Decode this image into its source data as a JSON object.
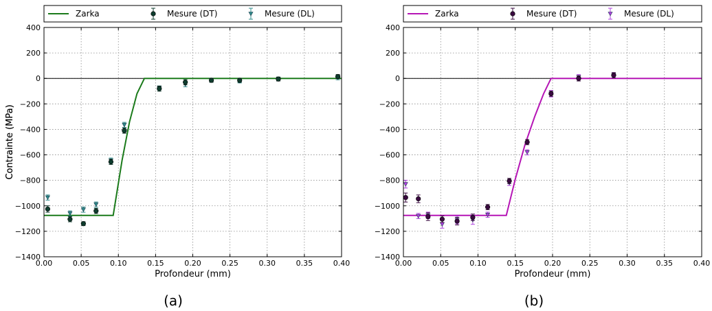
{
  "chart_data": [
    {
      "type": "scatter",
      "caption": "(a)",
      "xlabel": "Profondeur (mm)",
      "ylabel": "Contrainte (MPa)",
      "xlim": [
        0,
        0.4
      ],
      "ylim": [
        -1400,
        400
      ],
      "xticks": [
        "0.00",
        "0.05",
        "0.10",
        "0.15",
        "0.20",
        "0.25",
        "0.30",
        "0.35",
        "0.40"
      ],
      "yticks": [
        "400",
        "200",
        "0",
        "−200",
        "−400",
        "−600",
        "−800",
        "−1000",
        "−1200",
        "−1400"
      ],
      "grid": true,
      "legend": {
        "placement": "top",
        "entries": [
          "Zarka",
          "Mesure (DT)",
          "Mesure (DL)"
        ]
      },
      "colors": {
        "model": "#1a7a1a",
        "dt": "#0f3d2e",
        "dl": "#2e8b8b"
      },
      "series": [
        {
          "name": "Zarka",
          "kind": "line",
          "x": [
            0,
            0.093,
            0.105,
            0.115,
            0.125,
            0.135,
            0.4
          ],
          "y": [
            -1075,
            -1075,
            -640,
            -340,
            -120,
            0,
            0
          ]
        },
        {
          "name": "Mesure (DT)",
          "kind": "marker",
          "x": [
            0.005,
            0.035,
            0.053,
            0.07,
            0.09,
            0.108,
            0.155,
            0.19,
            0.225,
            0.263,
            0.315,
            0.395
          ],
          "y": [
            -1025,
            -1105,
            -1140,
            -1040,
            -655,
            -410,
            -80,
            -30,
            -15,
            -15,
            -5,
            15
          ],
          "err": [
            20,
            15,
            10,
            15,
            15,
            15,
            15,
            15,
            10,
            10,
            10,
            10
          ]
        },
        {
          "name": "Mesure (DL)",
          "kind": "marker",
          "x": [
            0.005,
            0.035,
            0.053,
            0.07,
            0.09,
            0.108,
            0.155,
            0.19,
            0.225,
            0.263,
            0.315,
            0.395
          ],
          "y": [
            -935,
            -1060,
            -1030,
            -990,
            -645,
            -365,
            -75,
            -45,
            -15,
            -20,
            -5,
            5
          ],
          "err": [
            15,
            15,
            15,
            15,
            15,
            15,
            10,
            15,
            10,
            10,
            10,
            10
          ]
        }
      ]
    },
    {
      "type": "scatter",
      "caption": "(b)",
      "xlabel": "Profondeur (mm)",
      "ylabel": "Contrainte (MPa)",
      "xlim": [
        0,
        0.4
      ],
      "ylim": [
        -1400,
        400
      ],
      "xticks": [
        "0.00",
        "0.05",
        "0.10",
        "0.15",
        "0.20",
        "0.25",
        "0.30",
        "0.35",
        "0.40"
      ],
      "yticks": [
        "400",
        "200",
        "0",
        "−200",
        "−400",
        "−600",
        "−800",
        "−1000",
        "−1200",
        "−1400"
      ],
      "grid": true,
      "legend": {
        "placement": "top",
        "entries": [
          "Zarka",
          "Mesure (DT)",
          "Mesure (DL)"
        ]
      },
      "colors": {
        "model": "#b515b5",
        "dt": "#3a0a40",
        "dl": "#b040e0"
      },
      "series": [
        {
          "name": "Zarka",
          "kind": "line",
          "x": [
            0,
            0.138,
            0.15,
            0.163,
            0.176,
            0.188,
            0.198,
            0.4
          ],
          "y": [
            -1075,
            -1075,
            -790,
            -520,
            -300,
            -120,
            0,
            0
          ]
        },
        {
          "name": "Mesure (DT)",
          "kind": "marker",
          "x": [
            0.003,
            0.02,
            0.033,
            0.052,
            0.072,
            0.093,
            0.113,
            0.142,
            0.166,
            0.198,
            0.235,
            0.282
          ],
          "y": [
            -935,
            -945,
            -1085,
            -1105,
            -1120,
            -1090,
            -1010,
            -805,
            -500,
            -120,
            0,
            25
          ],
          "err": [
            30,
            25,
            25,
            20,
            25,
            20,
            15,
            15,
            15,
            15,
            15,
            15
          ]
        },
        {
          "name": "Mesure (DL)",
          "kind": "marker",
          "x": [
            0.003,
            0.02,
            0.033,
            0.052,
            0.072,
            0.093,
            0.113,
            0.142,
            0.166,
            0.198,
            0.235,
            0.282
          ],
          "y": [
            -830,
            -1080,
            -1075,
            -1145,
            -1110,
            -1110,
            -1070,
            -820,
            -580,
            -120,
            10,
            25
          ],
          "err": [
            25,
            15,
            20,
            25,
            25,
            30,
            15,
            15,
            15,
            20,
            15,
            15
          ]
        }
      ]
    }
  ]
}
